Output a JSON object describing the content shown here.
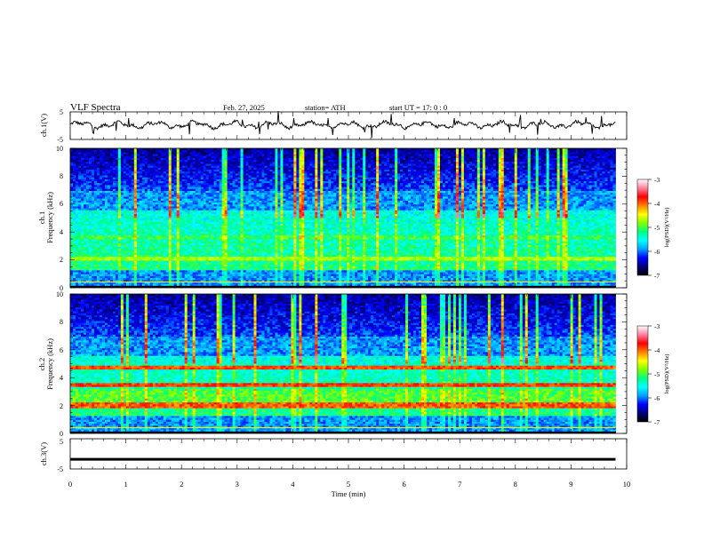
{
  "header": {
    "title": "VLF  Spectra",
    "date": "Feb. 27, 2025",
    "station": "station= ATH",
    "start": "start  UT  =    17: 0   : 0"
  },
  "chart_data": [
    {
      "type": "line",
      "ylabel": "ch.1(V)",
      "ylim": [
        -5,
        5
      ],
      "yticks": [
        "5",
        "-5"
      ],
      "series_baseline": 0.3,
      "series_color": "#000000"
    },
    {
      "type": "heatmap",
      "ylabel_lines": [
        "ch.1",
        "Frequency  (kHz)"
      ],
      "ylim": [
        0,
        10
      ],
      "yticks": [
        "0",
        "2",
        "4",
        "6",
        "8",
        "10"
      ],
      "colorbar": {
        "label": "log(PSD)(V²/Hz)",
        "ticks": [
          "-3",
          "-4",
          "-5",
          "-6",
          "-7"
        ],
        "range": [
          -7,
          -3
        ],
        "colors": [
          "#000000",
          "#00007a",
          "#0000ff",
          "#00a0ff",
          "#00ffff",
          "#00ff80",
          "#80ff00",
          "#ffff00",
          "#ff8000",
          "#ff0000",
          "#ff80a0",
          "#ffffff"
        ]
      }
    },
    {
      "type": "heatmap",
      "ylabel_lines": [
        "ch.2",
        "Frequency  (kHz)"
      ],
      "ylim": [
        0,
        10
      ],
      "yticks": [
        "0",
        "2",
        "4",
        "6",
        "8",
        "10"
      ],
      "colorbar": {
        "label": "log(PSD)(V²/Hz)",
        "ticks": [
          "-3",
          "-4",
          "-5",
          "-6",
          "-7"
        ],
        "range": [
          -7,
          -3
        ],
        "colors": [
          "#000000",
          "#00007a",
          "#0000ff",
          "#00a0ff",
          "#00ffff",
          "#00ff80",
          "#80ff00",
          "#ffff00",
          "#ff8000",
          "#ff0000",
          "#ff80a0",
          "#ffffff"
        ]
      }
    },
    {
      "type": "line",
      "ylabel": "ch.3(V)",
      "ylim": [
        -5,
        5
      ],
      "yticks": [
        "5",
        "-5"
      ],
      "series_baseline": -1.8,
      "series_color": "#000000"
    }
  ],
  "xaxis": {
    "label": "Time  (min)",
    "range": [
      0,
      10
    ],
    "ticks": [
      "0",
      "1",
      "2",
      "3",
      "4",
      "5",
      "6",
      "7",
      "8",
      "9",
      "10"
    ],
    "data_end": 9.8
  }
}
